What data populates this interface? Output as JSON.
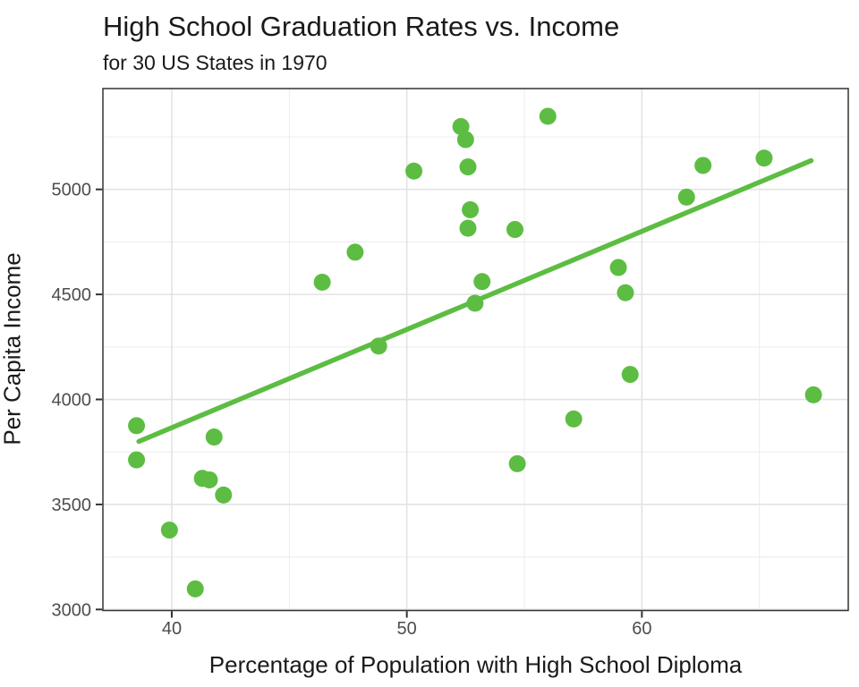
{
  "chart_data": {
    "type": "scatter",
    "title": "High School Graduation Rates vs. Income",
    "subtitle": "for 30 US States in 1970",
    "xlabel": "Percentage of Population with High School Diploma",
    "ylabel": "Per Capita Income",
    "xlim": [
      37.07,
      68.78
    ],
    "ylim": [
      2995,
      5480
    ],
    "x_ticks": [
      40,
      50,
      60
    ],
    "y_ticks": [
      3000,
      3500,
      4000,
      4500,
      5000
    ],
    "x_minor_ticks": [
      45,
      55,
      65
    ],
    "y_minor_ticks": [
      3250,
      3750,
      4250,
      4750,
      5250
    ],
    "grid": true,
    "legend": "none",
    "point_color": "#5CBD42",
    "line_color": "#5CBD42",
    "points": [
      [
        38.5,
        3875
      ],
      [
        38.5,
        3712
      ],
      [
        39.9,
        3378
      ],
      [
        41.0,
        3098
      ],
      [
        41.3,
        3624
      ],
      [
        41.6,
        3617
      ],
      [
        41.8,
        3821
      ],
      [
        42.2,
        3545
      ],
      [
        46.4,
        4558
      ],
      [
        47.8,
        4701
      ],
      [
        48.8,
        4254
      ],
      [
        50.3,
        5087
      ],
      [
        52.3,
        5299
      ],
      [
        52.5,
        5237
      ],
      [
        52.6,
        5107
      ],
      [
        52.6,
        4815
      ],
      [
        52.7,
        4903
      ],
      [
        52.9,
        4458
      ],
      [
        53.2,
        4561
      ],
      [
        54.6,
        4809
      ],
      [
        54.7,
        3694
      ],
      [
        56.0,
        5348
      ],
      [
        57.1,
        3907
      ],
      [
        59.0,
        4628
      ],
      [
        59.3,
        4508
      ],
      [
        59.5,
        4119
      ],
      [
        61.9,
        4963
      ],
      [
        62.6,
        5114
      ],
      [
        65.2,
        5149
      ],
      [
        67.3,
        4022
      ]
    ],
    "trend_line": {
      "x1": 38.6,
      "y1": 3800,
      "x2": 67.2,
      "y2": 5137
    }
  },
  "style": {
    "panel_border_color": "#333333",
    "grid_major_color": "#e3e3e3",
    "grid_minor_color": "#ececec",
    "tick_color": "#333333",
    "tick_label_color": "#4d4d4d"
  }
}
